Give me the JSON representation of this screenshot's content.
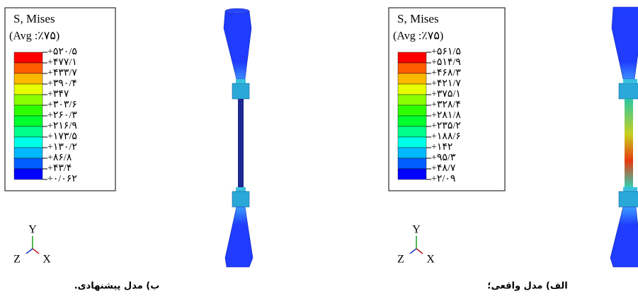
{
  "panels": [
    {
      "legend": {
        "title": "S, Mises",
        "subtitle": "(Avg :٪۷۵)",
        "labels": [
          "+۵۲۰/۵",
          "+۴۷۷/۱",
          "+۴۳۳/۷",
          "+۳۹۰/۴",
          "+۳۴۷",
          "+۳۰۳/۶",
          "+۲۶۰/۳",
          "+۲۱۶/۹",
          "+۱۷۳/۵",
          "+۱۳۰/۲",
          "+۸۶/۸",
          "+۴۳/۴",
          "+۰/۰۶۲"
        ]
      },
      "axes": {
        "y": "Y",
        "z": "Z",
        "x": "X"
      },
      "caption": "ب) مدل پیشنهادی."
    },
    {
      "legend": {
        "title": "S, Mises",
        "subtitle": "(Avg :٪۷۵)",
        "labels": [
          "+۵۶۱/۵",
          "+۵۱۴/۹",
          "+۴۶۸/۳",
          "+۴۲۱/۷",
          "+۳۷۵/۱",
          "+۳۲۸/۴",
          "+۲۸۱/۸",
          "+۲۳۵/۲",
          "+۱۸۸/۶",
          "+۱۴۲",
          "+۹۵/۳",
          "+۴۸/۷",
          "+۲/۰۹"
        ]
      },
      "axes": {
        "y": "Y",
        "z": "Z",
        "x": "X"
      },
      "caption": "الف) مدل واقعی؛"
    }
  ]
}
